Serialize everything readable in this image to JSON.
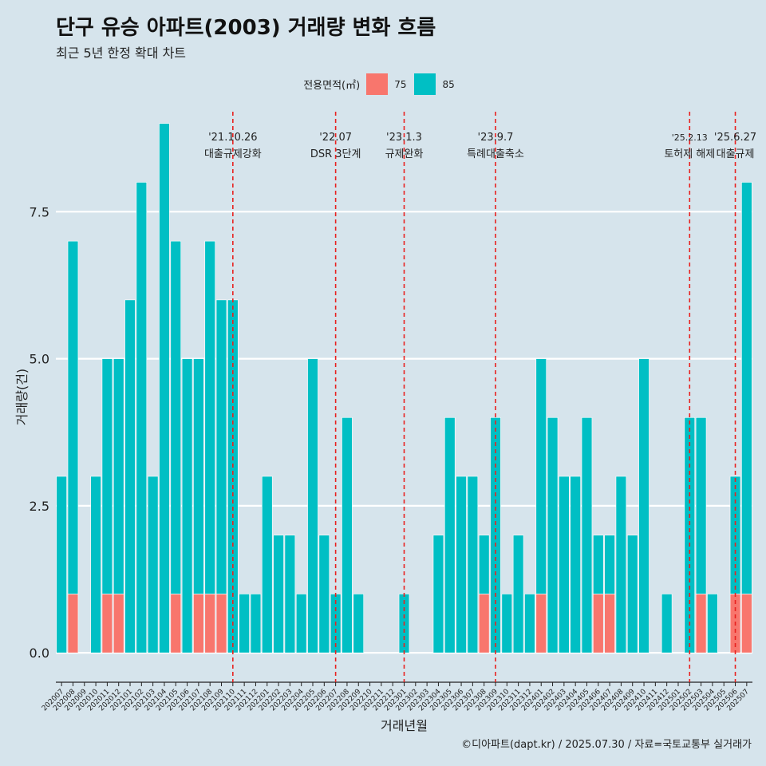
{
  "header": {
    "title": "단구 유승 아파트(2003) 거래량 변화 흐름",
    "subtitle": "최근 5년 한정 확대 차트"
  },
  "legend": {
    "title": "전용면적(㎡)",
    "items": [
      {
        "label": "75",
        "color": "#F8766D"
      },
      {
        "label": "85",
        "color": "#00BFC4"
      }
    ]
  },
  "caption": "©디아파트(dapt.kr) / 2025.07.30 / 자료=국토교통부 실거래가",
  "chart_data": {
    "type": "bar",
    "title": "단구 유승 아파트(2003) 거래량 변화 흐름",
    "xlabel": "거래년월",
    "ylabel": "거래량(건)",
    "ylim": [
      -0.5,
      9.2
    ],
    "yticks": [
      0.0,
      2.5,
      5.0,
      7.5
    ],
    "ytick_labels": [
      "0.0",
      "2.5",
      "5.0",
      "7.5"
    ],
    "categories": [
      "202007",
      "202008",
      "202009",
      "202010",
      "202011",
      "202012",
      "202101",
      "202102",
      "202103",
      "202104",
      "202105",
      "202106",
      "202107",
      "202108",
      "202109",
      "202110",
      "202111",
      "202112",
      "202201",
      "202202",
      "202203",
      "202204",
      "202205",
      "202206",
      "202207",
      "202208",
      "202209",
      "202210",
      "202211",
      "202212",
      "202301",
      "202302",
      "202303",
      "202304",
      "202305",
      "202306",
      "202307",
      "202308",
      "202309",
      "202310",
      "202311",
      "202312",
      "202401",
      "202402",
      "202403",
      "202404",
      "202405",
      "202406",
      "202407",
      "202408",
      "202409",
      "202410",
      "202411",
      "202412",
      "202501",
      "202502",
      "202503",
      "202504",
      "202505",
      "202506",
      "202507"
    ],
    "series": [
      {
        "name": "75",
        "color": "#F8766D",
        "values": [
          0,
          1,
          0,
          0,
          1,
          1,
          0,
          0,
          0,
          0,
          1,
          0,
          1,
          1,
          1,
          0,
          0,
          0,
          0,
          0,
          0,
          0,
          0,
          0,
          0,
          0,
          0,
          0,
          0,
          0,
          0,
          0,
          0,
          0,
          0,
          0,
          0,
          1,
          0,
          0,
          0,
          0,
          1,
          0,
          0,
          0,
          0,
          1,
          1,
          0,
          0,
          0,
          0,
          0,
          0,
          0,
          1,
          0,
          0,
          1,
          1
        ]
      },
      {
        "name": "85",
        "color": "#00BFC4",
        "values": [
          3,
          6,
          0,
          3,
          4,
          4,
          6,
          8,
          3,
          9,
          6,
          5,
          4,
          6,
          5,
          6,
          1,
          1,
          3,
          2,
          2,
          1,
          5,
          2,
          1,
          4,
          1,
          0,
          0,
          0,
          1,
          0,
          0,
          2,
          4,
          3,
          3,
          1,
          4,
          1,
          2,
          1,
          4,
          4,
          3,
          3,
          4,
          1,
          1,
          3,
          2,
          5,
          0,
          1,
          0,
          4,
          3,
          1,
          0,
          2,
          7
        ]
      }
    ],
    "annotations": [
      {
        "date": "'21.10.26",
        "label": "대출규제강화",
        "at": "202110"
      },
      {
        "date": "'22.07",
        "label": "DSR 3단계",
        "at": "202207"
      },
      {
        "date": "'23.1.3",
        "label": "규제완화",
        "at": "202301"
      },
      {
        "date": "'23.9.7",
        "label": "특례대출축소",
        "at": "202309"
      },
      {
        "date": "'25.2.13",
        "label": "토허제 해제",
        "at": "202502"
      },
      {
        "date": "'25.6.27",
        "label": "대출규제",
        "at": "202506"
      }
    ]
  }
}
